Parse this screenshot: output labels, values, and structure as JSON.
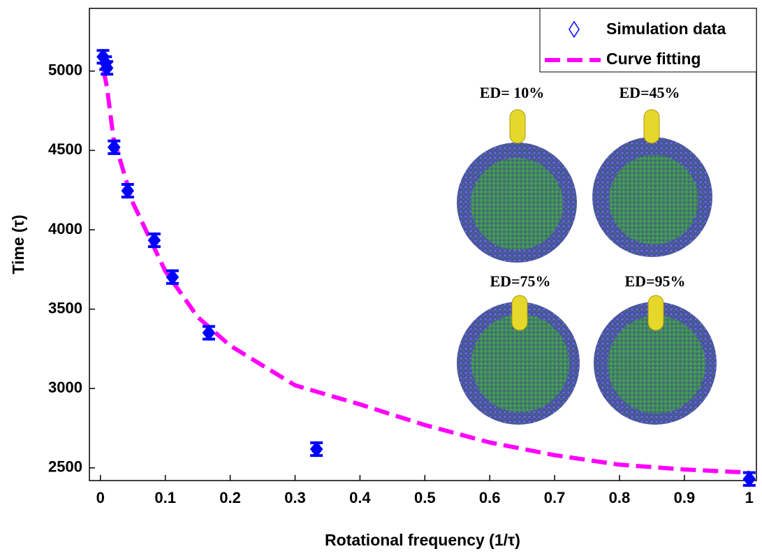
{
  "chart_data": {
    "type": "scatter",
    "x_label": "Rotational frequency (1/τ)",
    "y_label": "Time (τ)",
    "xlim": [
      -0.017,
      1.011
    ],
    "ylim": [
      2420,
      5395
    ],
    "xticks": [
      0,
      0.1,
      0.2,
      0.3,
      0.4,
      0.5,
      0.6,
      0.7,
      0.8,
      0.9,
      1
    ],
    "yticks": [
      2500,
      3000,
      3500,
      4000,
      4500,
      5000
    ],
    "legend": "upper right",
    "series": [
      {
        "name": "Simulation data",
        "color": "#0000ff",
        "x": [
          0.004,
          0.008,
          0.01,
          0.021,
          0.042,
          0.083,
          0.111,
          0.167,
          0.333,
          1.0
        ],
        "values": [
          5090,
          5050,
          5020,
          4520,
          4246,
          3934,
          3702,
          3351,
          2618,
          2430
        ],
        "errors": [
          40,
          40,
          40,
          40,
          40,
          40,
          40,
          40,
          40,
          40
        ]
      },
      {
        "name": "Curve fitting",
        "color": "#ff00ff",
        "x": [
          0.005,
          0.01,
          0.02,
          0.05,
          0.1,
          0.15,
          0.2,
          0.3,
          0.4,
          0.5,
          0.6,
          0.7,
          0.8,
          0.9,
          1.0
        ],
        "values": [
          5000,
          4900,
          4580,
          4170,
          3740,
          3450,
          3270,
          3020,
          2900,
          2770,
          2660,
          2580,
          2520,
          2490,
          2470
        ]
      }
    ],
    "annotations": [
      "ED= 10%",
      "ED=45%",
      "ED=75%",
      "ED=95%"
    ]
  }
}
